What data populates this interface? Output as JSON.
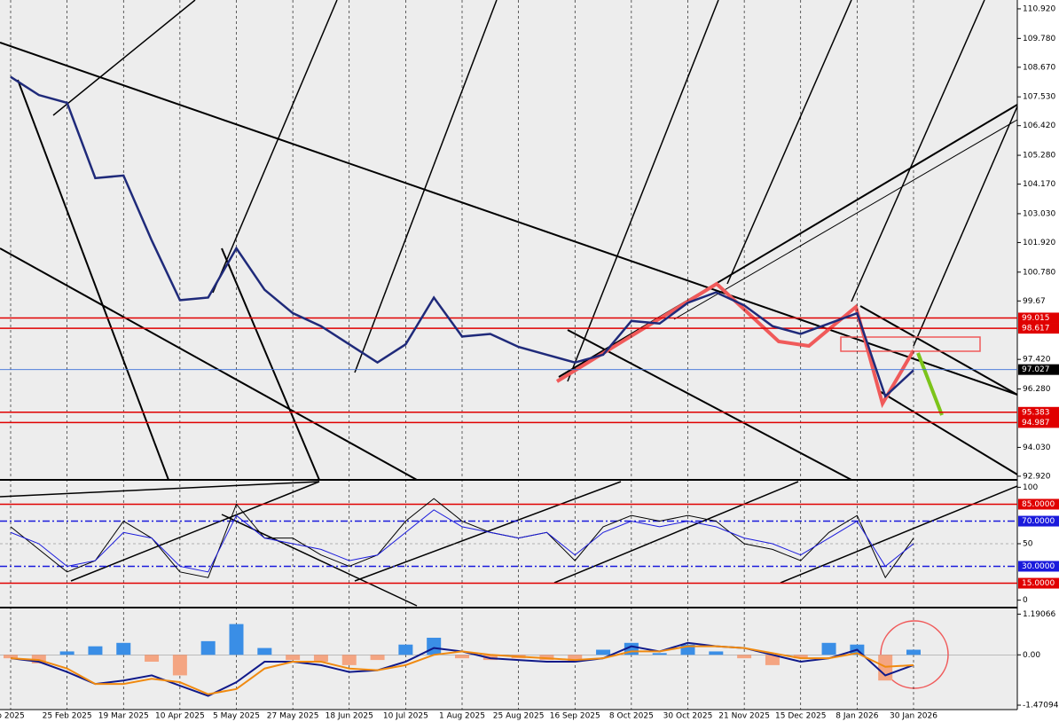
{
  "chart_data": [
    {
      "type": "line",
      "categories": [
        "b 2025",
        null,
        "25 Feb 2025",
        null,
        "19 Mar 2025",
        null,
        "10 Apr 2025",
        null,
        "5 May 2025",
        null,
        "27 May 2025",
        null,
        "18 Jun 2025",
        null,
        "10 Jul 2025",
        null,
        "1 Aug 2025",
        null,
        "25 Aug 2025",
        null,
        "16 Sep 2025",
        null,
        "8 Oct 2025",
        null,
        "30 Oct 2025",
        null,
        "21 Nov 2025",
        null,
        "15 Dec 2025",
        null,
        "8 Jan 2026",
        null,
        "30 Jan 2026"
      ],
      "values": [
        108.3,
        107.6,
        107.3,
        104.4,
        104.5,
        102.0,
        99.7,
        99.8,
        101.7,
        100.1,
        99.2,
        98.7,
        98.0,
        97.3,
        98.0,
        99.8,
        98.3,
        98.4,
        97.9,
        97.6,
        97.3,
        97.6,
        98.9,
        98.8,
        99.6,
        100.0,
        99.5,
        98.7,
        98.4,
        98.8,
        99.2,
        96.0,
        97.0
      ],
      "color": "#1f2a7a",
      "ylim": [
        92.78,
        111.26
      ],
      "yticks": [
        {
          "value": 110.92,
          "label": "110.920"
        },
        {
          "value": 109.78,
          "label": "109.780"
        },
        {
          "value": 108.67,
          "label": "108.670"
        },
        {
          "value": 107.53,
          "label": "107.530"
        },
        {
          "value": 106.42,
          "label": "106.420"
        },
        {
          "value": 105.28,
          "label": "105.280"
        },
        {
          "value": 104.17,
          "label": "104.170"
        },
        {
          "value": 103.03,
          "label": "103.030"
        },
        {
          "value": 101.92,
          "label": "101.920"
        },
        {
          "value": 100.78,
          "label": "100.780"
        },
        99.67,
        {
          "value": 97.42,
          "label": "97.420"
        },
        {
          "value": 96.28,
          "label": "96.280"
        },
        {
          "value": 94.03,
          "label": "94.030"
        },
        {
          "value": 92.92,
          "label": "92.920"
        }
      ],
      "levels": [
        {
          "value": 99.015,
          "color": "#e00000"
        },
        {
          "value": 98.617,
          "color": "#e00000"
        },
        {
          "value": 97.027,
          "color": "#000000"
        },
        {
          "value": 95.383,
          "color": "#e00000"
        },
        {
          "value": 94.987,
          "color": "#e00000"
        }
      ],
      "grid": true
    },
    {
      "type": "line",
      "series": [
        {
          "color": "#000000",
          "values": [
            65,
            45,
            25,
            35,
            70,
            55,
            25,
            20,
            85,
            55,
            55,
            40,
            30,
            40,
            70,
            90,
            70,
            60,
            55,
            60,
            35,
            65,
            75,
            70,
            75,
            70,
            50,
            45,
            35,
            60,
            75,
            20,
            55
          ]
        },
        {
          "color": "#1a1adc",
          "values": [
            60,
            50,
            30,
            35,
            60,
            55,
            30,
            25,
            75,
            55,
            50,
            45,
            35,
            40,
            60,
            80,
            65,
            60,
            55,
            60,
            40,
            60,
            70,
            65,
            70,
            65,
            55,
            50,
            40,
            55,
            70,
            30,
            50
          ]
        }
      ],
      "ylim": [
        -5,
        105
      ],
      "yticks": [
        100,
        50,
        0
      ],
      "levels": [
        {
          "value": 85,
          "label": "85.0000",
          "color": "#e00000"
        },
        {
          "value": 70,
          "label": "70.0000",
          "color": "#1a1adc"
        },
        {
          "value": 30,
          "label": "30.0000",
          "color": "#1a1adc"
        },
        {
          "value": 15,
          "label": "15.0000",
          "color": "#e00000"
        }
      ]
    },
    {
      "type": "macd",
      "values": [
        -0.1,
        -0.25,
        0.1,
        0.25,
        0.35,
        -0.2,
        -0.6,
        0.4,
        0.9,
        0.2,
        -0.15,
        -0.2,
        -0.3,
        -0.15,
        0.3,
        0.5,
        -0.1,
        -0.15,
        -0.1,
        -0.15,
        -0.2,
        0.15,
        0.35,
        0.05,
        0.3,
        0.1,
        -0.1,
        -0.3,
        -0.1,
        0.35,
        0.3,
        -0.75,
        0.15
      ],
      "colors": [
        "#3a8ee6",
        "#f4a582"
      ],
      "series": [
        {
          "color": "#101a8a",
          "values": [
            -0.1,
            -0.2,
            -0.5,
            -0.85,
            -0.75,
            -0.6,
            -0.9,
            -1.2,
            -0.8,
            -0.2,
            -0.2,
            -0.3,
            -0.5,
            -0.45,
            -0.2,
            0.2,
            0.1,
            -0.1,
            -0.15,
            -0.2,
            -0.2,
            -0.1,
            0.25,
            0.1,
            0.35,
            0.25,
            0.2,
            0.0,
            -0.2,
            -0.1,
            0.15,
            -0.6,
            -0.3
          ]
        },
        {
          "color": "#f08a10",
          "values": [
            -0.1,
            -0.15,
            -0.4,
            -0.85,
            -0.85,
            -0.7,
            -0.8,
            -1.15,
            -1.0,
            -0.4,
            -0.2,
            -0.2,
            -0.4,
            -0.45,
            -0.3,
            0.0,
            0.1,
            0.0,
            -0.05,
            -0.1,
            -0.15,
            -0.1,
            0.1,
            0.1,
            0.25,
            0.25,
            0.2,
            0.05,
            -0.1,
            -0.1,
            0.05,
            -0.35,
            -0.3
          ]
        }
      ],
      "ylim": [
        -1.6,
        1.33
      ],
      "yticks": [
        1.19066,
        {
          "value": 0,
          "label": "0.00"
        },
        -1.47094
      ]
    }
  ]
}
